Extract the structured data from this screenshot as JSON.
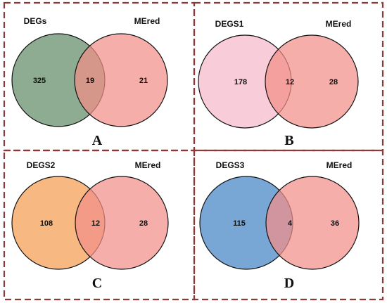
{
  "panels": [
    {
      "letter": "A",
      "left_set": "DEGs",
      "right_set": "MEred",
      "left_only": "325",
      "overlap": "19",
      "right_only": "21",
      "left_color": "#7a9d7e",
      "right_color": "#f28f89"
    },
    {
      "letter": "B",
      "left_set": "DEGS1",
      "right_set": "MEred",
      "left_only": "178",
      "overlap": "12",
      "right_only": "28",
      "left_color": "#f7c6d4",
      "right_color": "#f28f89"
    },
    {
      "letter": "C",
      "left_set": "DEGS2",
      "right_set": "MEred",
      "left_only": "108",
      "overlap": "12",
      "right_only": "28",
      "left_color": "#f6b173",
      "right_color": "#f28f89"
    },
    {
      "letter": "D",
      "left_set": "DEGS3",
      "right_set": "MEred",
      "left_only": "115",
      "overlap": "4",
      "right_only": "36",
      "left_color": "#6d9ed1",
      "right_color": "#f28f89"
    }
  ],
  "frame_color": "#8b3a3a"
}
